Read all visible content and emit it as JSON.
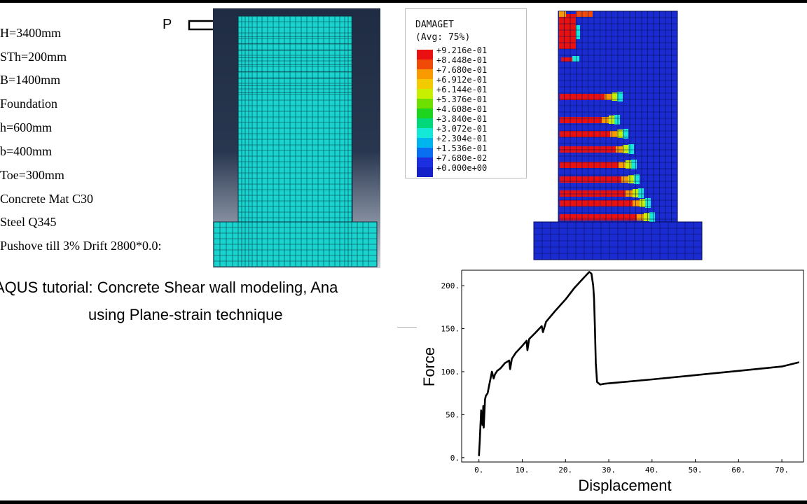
{
  "parameters": [
    "H=3400mm",
    "STh=200mm",
    "B=1400mm",
    "Foundation",
    "h=600mm",
    "b=400mm",
    "Toe=300mm",
    "Concrete Mat C30",
    "Steel Q345",
    "Pushove till 3% Drift   2800*0.0:"
  ],
  "load_label": "P",
  "caption": {
    "line1": "AQUS tutorial: Concrete Shear wall modeling, Ana",
    "line2": "using Plane-strain technique"
  },
  "colors": {
    "mesh_fill": "#19d3cf",
    "panel_bg": "#253249",
    "damage_base": "#1a2bd1"
  },
  "legend": {
    "title1": "DAMAGET",
    "title2": "(Avg: 75%)",
    "entries": [
      {
        "value": "+9.216e-01",
        "color": "#e81010"
      },
      {
        "value": "+8.448e-01",
        "color": "#f04a08"
      },
      {
        "value": "+7.680e-01",
        "color": "#f89a00"
      },
      {
        "value": "+6.912e-01",
        "color": "#f2cc00"
      },
      {
        "value": "+6.144e-01",
        "color": "#c8ee00"
      },
      {
        "value": "+5.376e-01",
        "color": "#6ee000"
      },
      {
        "value": "+4.608e-01",
        "color": "#1ed41e"
      },
      {
        "value": "+3.840e-01",
        "color": "#00d87a"
      },
      {
        "value": "+3.072e-01",
        "color": "#14e8d6"
      },
      {
        "value": "+2.304e-01",
        "color": "#00b4ee"
      },
      {
        "value": "+1.536e-01",
        "color": "#0a6ef0"
      },
      {
        "value": "+7.680e-02",
        "color": "#1c2fe0"
      },
      {
        "value": "+0.000e+00",
        "color": "#1420c8"
      }
    ]
  },
  "chart_data": {
    "type": "line",
    "xlabel": "Displacement",
    "ylabel": "Force",
    "xlim": [
      -4,
      75
    ],
    "ylim": [
      -5,
      218
    ],
    "xticks": [
      0,
      10,
      20,
      30,
      40,
      50,
      60,
      70
    ],
    "xtick_labels": [
      "0.",
      "10.",
      "20.",
      "30.",
      "40.",
      "50.",
      "60.",
      "70."
    ],
    "yticks": [
      0,
      50,
      100,
      150,
      200
    ],
    "ytick_labels": [
      "0.",
      "50.",
      "100.",
      "150.",
      "200."
    ],
    "grid": false,
    "legend": "none",
    "series": [
      {
        "x": [
          0,
          0.2,
          0.5,
          0.8,
          1.0,
          1.1,
          1.4,
          1.6,
          2.0,
          2.4,
          2.8,
          3.0,
          3.4,
          3.7,
          4.2,
          5.0,
          6.0,
          7.0,
          7.2,
          7.6,
          8.5,
          10.0,
          11.0,
          11.2,
          11.6,
          13.0,
          14.5,
          14.8,
          15.5,
          17.5,
          20.0,
          22.0,
          24.0,
          25.5,
          26.0,
          26.4,
          26.6,
          26.8,
          27.0,
          27.3,
          28.0,
          29.0,
          40.0,
          50.0,
          60.0,
          70.0,
          74.0
        ],
        "y": [
          2,
          20,
          55,
          38,
          60,
          35,
          68,
          72,
          75,
          85,
          95,
          100,
          92,
          97,
          101,
          104,
          110,
          113,
          103,
          115,
          122,
          130,
          136,
          125,
          138,
          145,
          153,
          146,
          158,
          170,
          184,
          197,
          208,
          216,
          214,
          200,
          185,
          150,
          110,
          88,
          85,
          86,
          91,
          96,
          101,
          106,
          111
        ]
      }
    ]
  }
}
